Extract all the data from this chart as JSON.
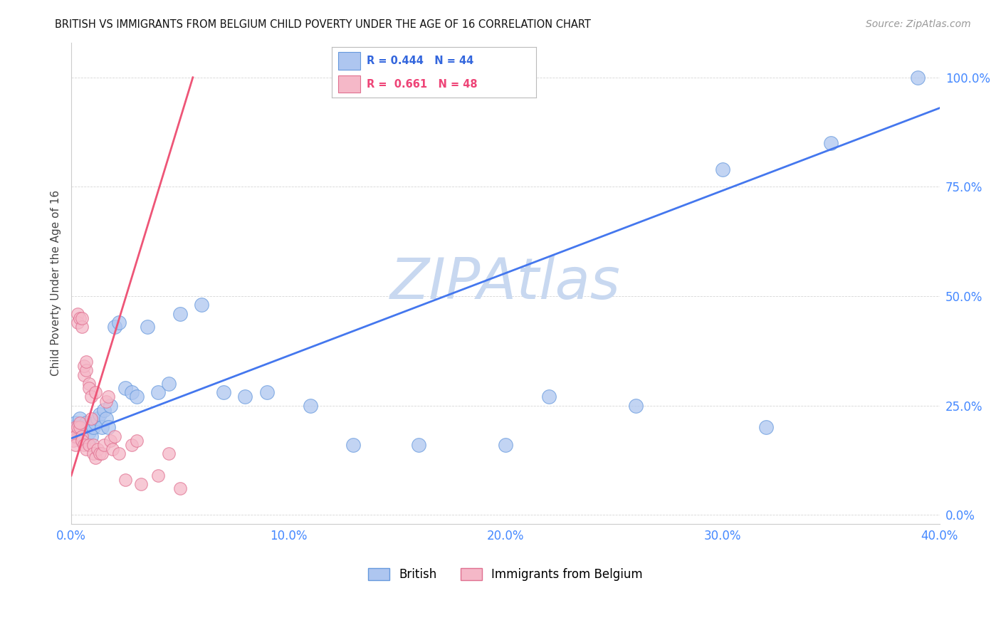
{
  "title": "BRITISH VS IMMIGRANTS FROM BELGIUM CHILD POVERTY UNDER THE AGE OF 16 CORRELATION CHART",
  "source": "Source: ZipAtlas.com",
  "ylabel": "Child Poverty Under the Age of 16",
  "british_R": 0.444,
  "british_N": 44,
  "belgium_R": 0.661,
  "belgium_N": 48,
  "british_color": "#aec6f0",
  "british_edge": "#6699dd",
  "belgium_color": "#f5b8c8",
  "belgium_edge": "#e07090",
  "trendline_british_color": "#4477ee",
  "trendline_belgium_color": "#ee5577",
  "watermark_color": "#c8d8f0",
  "background_color": "#ffffff",
  "xlim": [
    0.0,
    0.4
  ],
  "ylim": [
    -0.02,
    1.08
  ],
  "xticks": [
    0.0,
    0.1,
    0.2,
    0.3,
    0.4
  ],
  "yticks": [
    0.0,
    0.25,
    0.5,
    0.75,
    1.0
  ],
  "british_trend_x0": 0.0,
  "british_trend_y0": 0.175,
  "british_trend_x1": 0.4,
  "british_trend_y1": 0.93,
  "belgium_trend_x0": 0.0,
  "belgium_trend_y0": 0.09,
  "belgium_trend_x1": 0.056,
  "belgium_trend_y1": 1.0,
  "british_x": [
    0.001,
    0.002,
    0.002,
    0.003,
    0.003,
    0.004,
    0.005,
    0.005,
    0.006,
    0.007,
    0.008,
    0.009,
    0.01,
    0.011,
    0.012,
    0.013,
    0.014,
    0.015,
    0.016,
    0.017,
    0.018,
    0.02,
    0.022,
    0.025,
    0.028,
    0.03,
    0.035,
    0.04,
    0.045,
    0.05,
    0.06,
    0.07,
    0.08,
    0.09,
    0.11,
    0.13,
    0.16,
    0.2,
    0.22,
    0.26,
    0.3,
    0.32,
    0.35,
    0.39
  ],
  "british_y": [
    0.2,
    0.19,
    0.21,
    0.2,
    0.18,
    0.22,
    0.19,
    0.17,
    0.2,
    0.21,
    0.19,
    0.18,
    0.2,
    0.21,
    0.22,
    0.23,
    0.2,
    0.24,
    0.22,
    0.2,
    0.25,
    0.43,
    0.44,
    0.29,
    0.28,
    0.27,
    0.43,
    0.28,
    0.3,
    0.46,
    0.48,
    0.28,
    0.27,
    0.28,
    0.25,
    0.16,
    0.16,
    0.16,
    0.27,
    0.25,
    0.79,
    0.2,
    0.85,
    1.0
  ],
  "belgium_x": [
    0.001,
    0.001,
    0.001,
    0.002,
    0.002,
    0.002,
    0.003,
    0.003,
    0.003,
    0.004,
    0.004,
    0.004,
    0.005,
    0.005,
    0.005,
    0.005,
    0.006,
    0.006,
    0.006,
    0.007,
    0.007,
    0.007,
    0.008,
    0.008,
    0.008,
    0.009,
    0.009,
    0.01,
    0.01,
    0.011,
    0.011,
    0.012,
    0.013,
    0.014,
    0.015,
    0.016,
    0.017,
    0.018,
    0.019,
    0.02,
    0.022,
    0.025,
    0.028,
    0.03,
    0.032,
    0.04,
    0.045,
    0.05
  ],
  "belgium_y": [
    0.19,
    0.18,
    0.17,
    0.2,
    0.18,
    0.16,
    0.2,
    0.46,
    0.44,
    0.2,
    0.45,
    0.21,
    0.18,
    0.17,
    0.43,
    0.45,
    0.32,
    0.34,
    0.16,
    0.33,
    0.15,
    0.35,
    0.3,
    0.29,
    0.16,
    0.22,
    0.27,
    0.16,
    0.14,
    0.28,
    0.13,
    0.15,
    0.14,
    0.14,
    0.16,
    0.26,
    0.27,
    0.17,
    0.15,
    0.18,
    0.14,
    0.08,
    0.16,
    0.17,
    0.07,
    0.09,
    0.14,
    0.06
  ]
}
